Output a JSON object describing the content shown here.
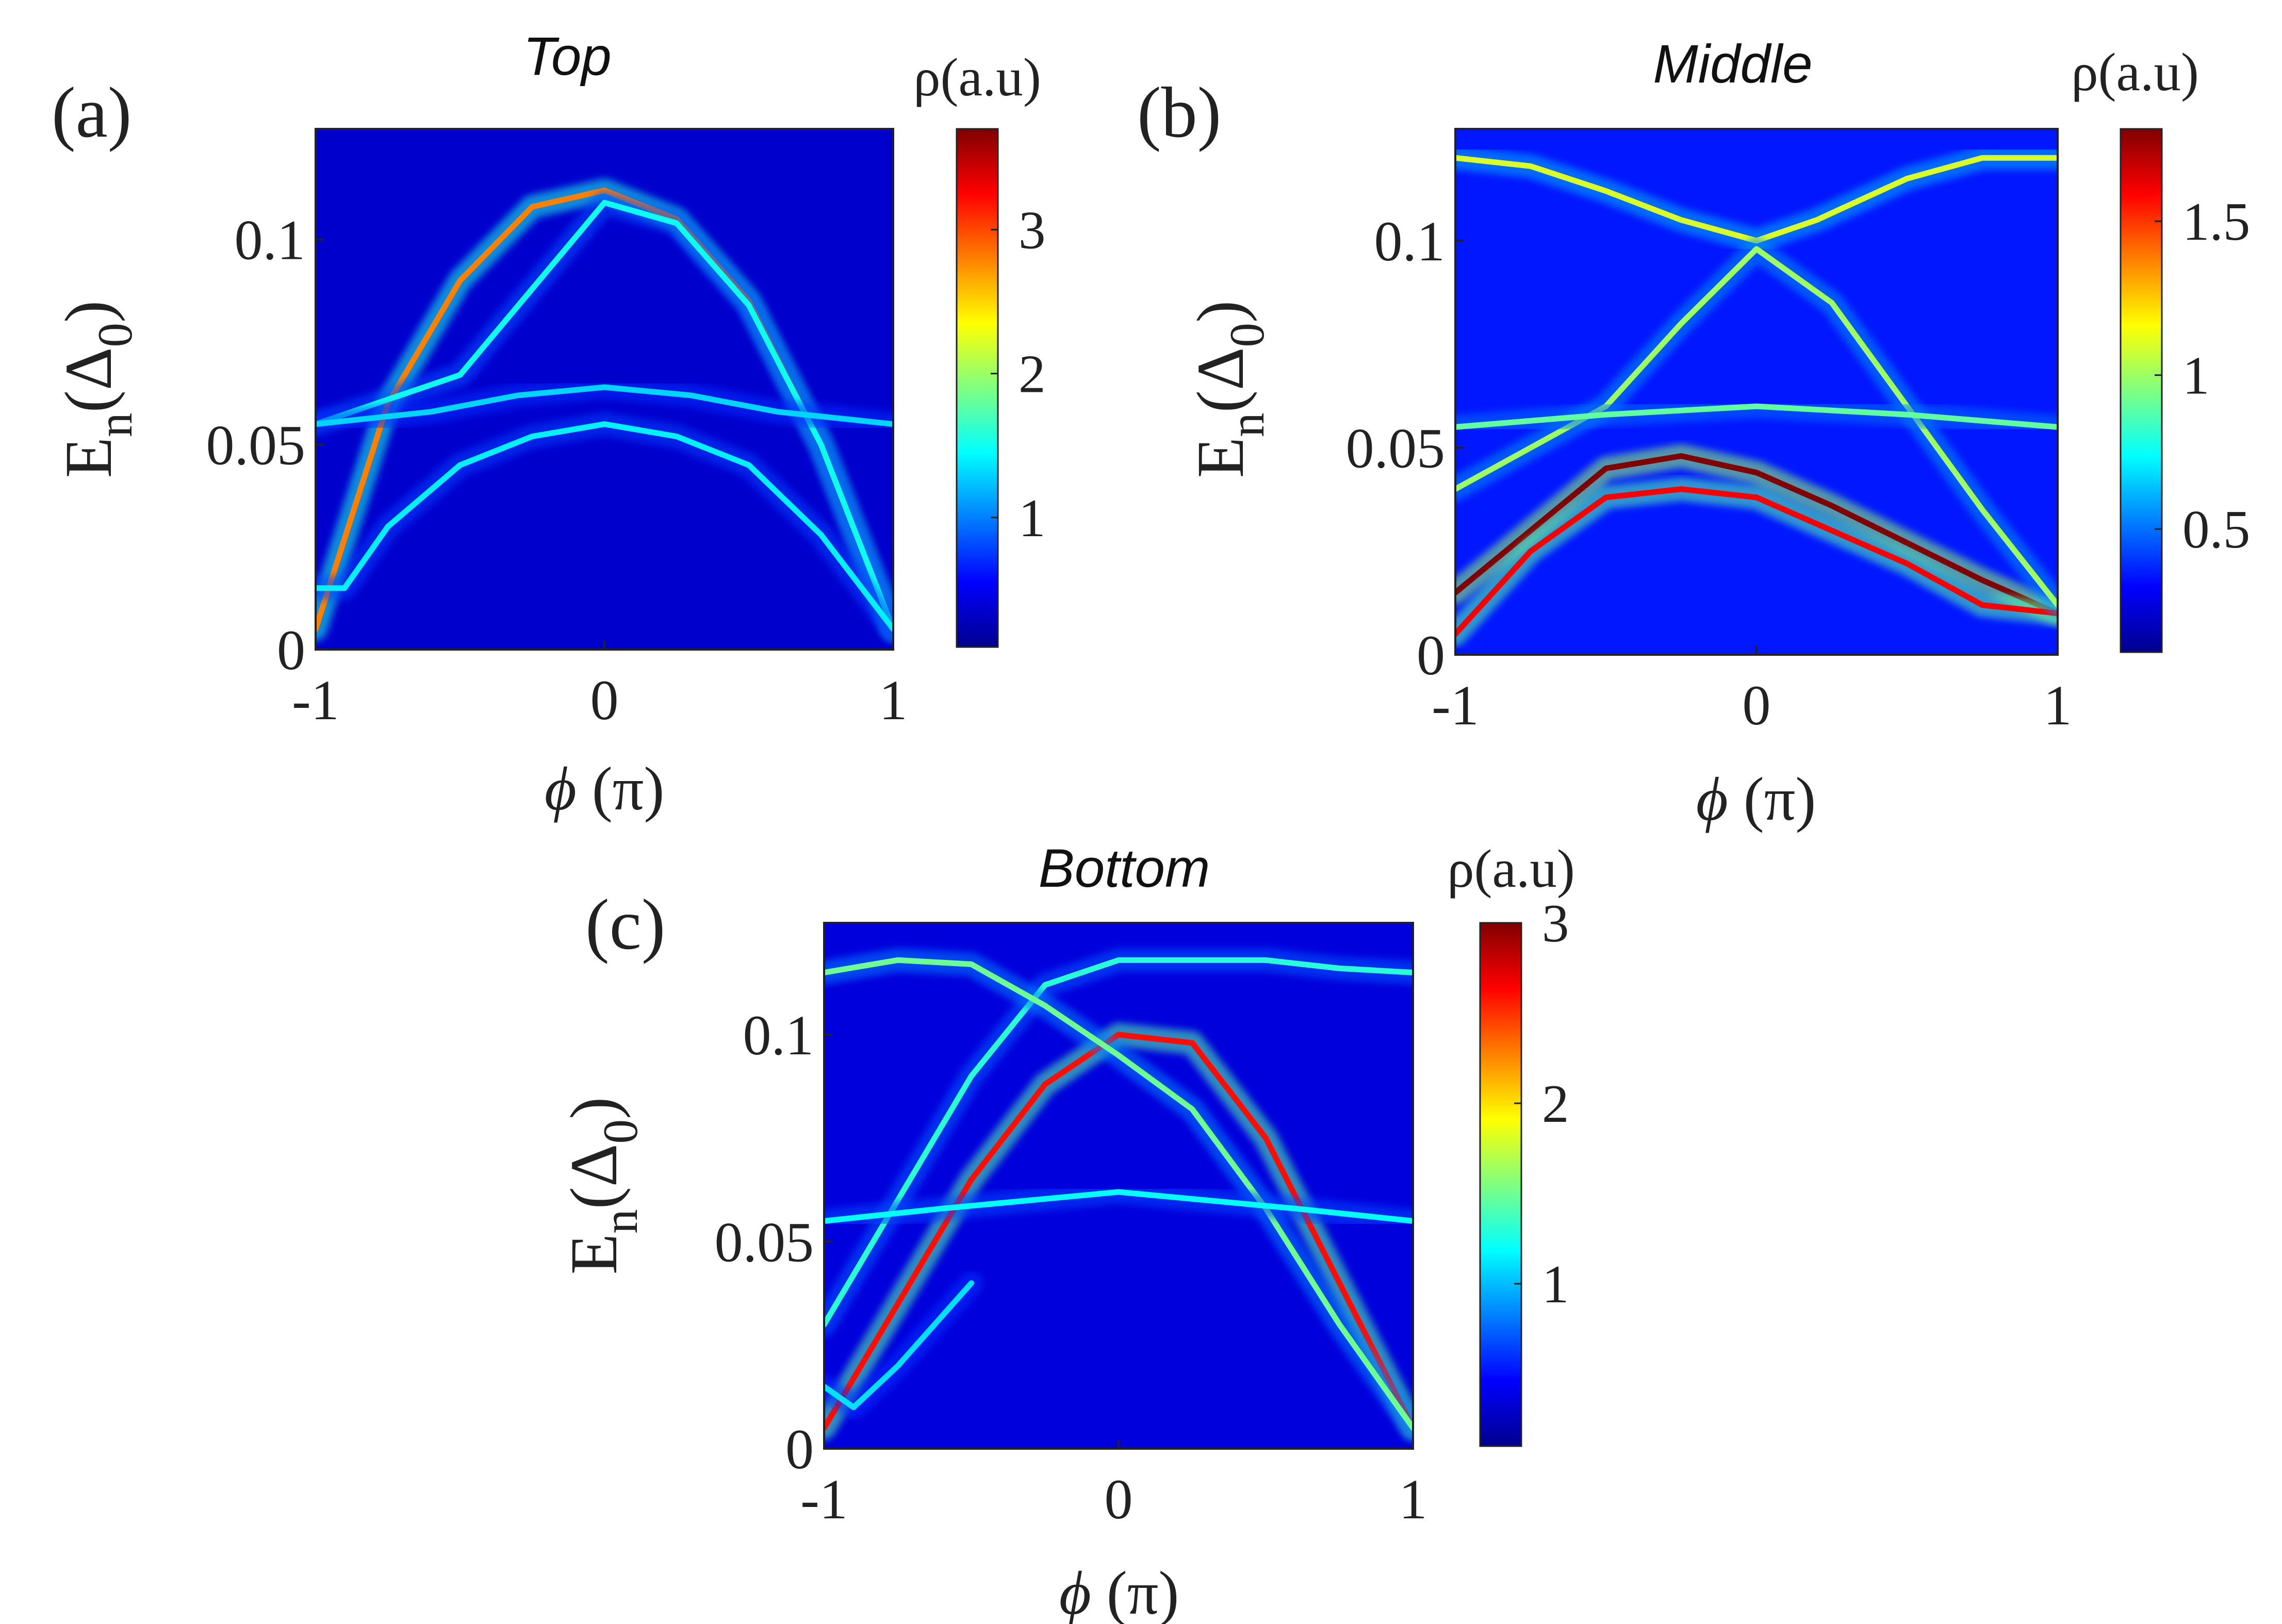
{
  "figure": {
    "panels": [
      {
        "key": "a",
        "label": "(a)",
        "title": "Top",
        "cbar_label": "ρ(a.u)"
      },
      {
        "key": "b",
        "label": "(b)",
        "title": "Middle",
        "cbar_label": "ρ(a.u)"
      },
      {
        "key": "c",
        "label": "(c)",
        "title": "Bottom",
        "cbar_label": "ρ(a.u)"
      }
    ]
  },
  "colormap": [
    "#00008f",
    "#0000ff",
    "#0080ff",
    "#00ffff",
    "#80ff80",
    "#ffff00",
    "#ff8000",
    "#ff0000",
    "#800000"
  ],
  "chart_data": [
    {
      "type": "heatmap",
      "title": "Top",
      "xlabel": "ϕ (π)",
      "ylabel": "En(Δ0)",
      "xlim": [
        -1,
        1
      ],
      "ylim": [
        0,
        0.127
      ],
      "xticks": [
        -1,
        0,
        1
      ],
      "xtick_labels": [
        "-1",
        "0",
        "1"
      ],
      "yticks": [
        0,
        0.05,
        0.1
      ],
      "ytick_labels": [
        "0",
        "0.05",
        "0.1"
      ],
      "colorbar": {
        "label": "ρ(a.u)",
        "range": [
          0.1,
          3.7
        ],
        "ticks": [
          1,
          2,
          3
        ],
        "tick_labels": [
          "1",
          "2",
          "3"
        ]
      },
      "background_value": 0.35,
      "bands": [
        {
          "x": [
            -1,
            -0.75,
            -0.5,
            -0.25,
            0,
            0.25,
            0.5,
            0.75,
            1
          ],
          "y": [
            0.005,
            0.06,
            0.09,
            0.108,
            0.112,
            0.105,
            0.085,
            0.05,
            0.005
          ],
          "peak": 2.8
        },
        {
          "x": [
            -1,
            -0.5,
            -0.25,
            0,
            0.25,
            0.5,
            0.75,
            1
          ],
          "y": [
            0.055,
            0.067,
            0.088,
            0.109,
            0.104,
            0.084,
            0.05,
            0.005
          ],
          "peak": 1.5
        },
        {
          "x": [
            -1,
            -0.6,
            -0.3,
            0,
            0.3,
            0.6,
            1
          ],
          "y": [
            0.055,
            0.058,
            0.062,
            0.064,
            0.062,
            0.058,
            0.055
          ],
          "peak": 1.3
        },
        {
          "x": [
            -1,
            -0.9,
            -0.75,
            -0.5,
            -0.25,
            0,
            0.25,
            0.5,
            0.75,
            1
          ],
          "y": [
            0.015,
            0.015,
            0.03,
            0.045,
            0.052,
            0.055,
            0.052,
            0.045,
            0.028,
            0.005
          ],
          "peak": 1.4
        }
      ]
    },
    {
      "type": "heatmap",
      "title": "Middle",
      "xlabel": "ϕ (π)",
      "ylabel": "En(Δ0)",
      "xlim": [
        -1,
        1
      ],
      "ylim": [
        0,
        0.127
      ],
      "xticks": [
        -1,
        0,
        1
      ],
      "xtick_labels": [
        "-1",
        "0",
        "1"
      ],
      "yticks": [
        0,
        0.05,
        0.1
      ],
      "ytick_labels": [
        "0",
        "0.05",
        "0.1"
      ],
      "colorbar": {
        "label": "ρ(a.u)",
        "range": [
          0.1,
          1.8
        ],
        "ticks": [
          0.5,
          1,
          1.5
        ],
        "tick_labels": [
          "0.5",
          "1",
          "1.5"
        ]
      },
      "background_value": 0.35,
      "bands": [
        {
          "x": [
            -1,
            -0.75,
            -0.5,
            -0.25,
            0,
            0.25,
            0.5,
            0.75,
            1
          ],
          "y": [
            0.015,
            0.03,
            0.045,
            0.048,
            0.044,
            0.036,
            0.027,
            0.018,
            0.01
          ],
          "peak": 1.8
        },
        {
          "x": [
            -1,
            -0.75,
            -0.5,
            -0.25,
            0,
            0.25,
            0.5,
            0.75,
            1
          ],
          "y": [
            0.005,
            0.025,
            0.038,
            0.04,
            0.038,
            0.03,
            0.022,
            0.012,
            0.01
          ],
          "peak": 1.6
        },
        {
          "x": [
            -1,
            -0.75,
            -0.5,
            -0.25,
            0,
            0.2,
            0.5,
            0.75,
            1
          ],
          "y": [
            0.12,
            0.118,
            0.112,
            0.105,
            0.1,
            0.105,
            0.115,
            0.12,
            0.12
          ],
          "peak": 1.1
        },
        {
          "x": [
            -1,
            -0.5,
            -0.25,
            0,
            0.25,
            0.5,
            0.75,
            1
          ],
          "y": [
            0.04,
            0.06,
            0.08,
            0.098,
            0.085,
            0.06,
            0.035,
            0.012
          ],
          "peak": 1.0
        },
        {
          "x": [
            -1,
            -0.5,
            0,
            0.5,
            1
          ],
          "y": [
            0.055,
            0.058,
            0.06,
            0.058,
            0.055
          ],
          "peak": 0.9
        }
      ]
    },
    {
      "type": "heatmap",
      "title": "Bottom",
      "xlabel": "ϕ (π)",
      "ylabel": "En(Δ0)",
      "xlim": [
        -1,
        1
      ],
      "ylim": [
        0,
        0.127
      ],
      "xticks": [
        -1,
        0,
        1
      ],
      "xtick_labels": [
        "-1",
        "0",
        "1"
      ],
      "yticks": [
        0,
        0.05,
        0.1
      ],
      "ytick_labels": [
        "0",
        "0.05",
        "0.1"
      ],
      "colorbar": {
        "label": "ρ(a.u)",
        "range": [
          0.1,
          3.0
        ],
        "ticks": [
          1,
          2,
          3
        ],
        "tick_labels": [
          "1",
          "2",
          "3"
        ]
      },
      "background_value": 0.35,
      "bands": [
        {
          "x": [
            -1,
            -0.75,
            -0.5,
            -0.25,
            0,
            0.25,
            0.5,
            0.75,
            1
          ],
          "y": [
            0.005,
            0.035,
            0.065,
            0.088,
            0.1,
            0.098,
            0.075,
            0.04,
            0.005
          ],
          "peak": 2.6
        },
        {
          "x": [
            -1,
            -0.75,
            -0.5,
            -0.25,
            0,
            0.25,
            0.5,
            0.75,
            1
          ],
          "y": [
            0.03,
            0.06,
            0.09,
            0.112,
            0.118,
            0.118,
            0.118,
            0.116,
            0.115
          ],
          "peak": 1.3
        },
        {
          "x": [
            -1,
            -0.75,
            -0.5,
            -0.25,
            0,
            0.25,
            0.5,
            0.75,
            1
          ],
          "y": [
            0.115,
            0.118,
            0.117,
            0.107,
            0.095,
            0.082,
            0.058,
            0.03,
            0.005
          ],
          "peak": 1.5
        },
        {
          "x": [
            -1,
            -0.6,
            -0.3,
            0,
            0.3,
            0.6,
            1
          ],
          "y": [
            0.055,
            0.058,
            0.06,
            0.062,
            0.06,
            0.058,
            0.055
          ],
          "peak": 1.2
        },
        {
          "x": [
            -1,
            -0.9,
            -0.75,
            -0.5
          ],
          "y": [
            0.015,
            0.01,
            0.02,
            0.04
          ],
          "peak": 1.1
        }
      ]
    }
  ]
}
